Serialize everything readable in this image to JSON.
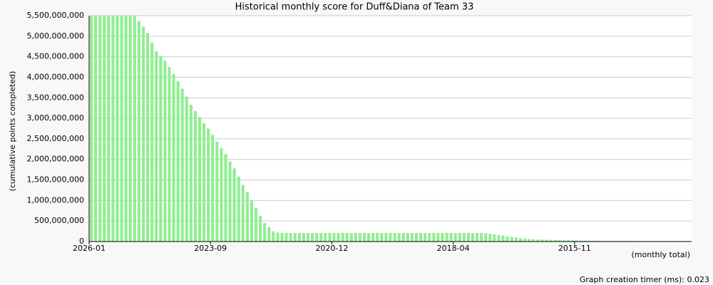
{
  "chart_data": {
    "type": "bar",
    "title": "Historical monthly score for Duff&Diana of Team 33",
    "y_label": "(cumulative points completed)",
    "x_label": "(monthly total)",
    "color": "#90ee90",
    "grid": true,
    "ylim": [
      0,
      5500000000
    ],
    "yticks": [
      0,
      {
        "value": 500000000,
        "label": "500,000,000"
      },
      {
        "value": 1000000000,
        "label": "1,000,000,000"
      },
      {
        "value": 1500000000,
        "label": "1,500,000,000"
      },
      {
        "value": 2000000000,
        "label": "2,000,000,000"
      },
      {
        "value": 2500000000,
        "label": "2,500,000,000"
      },
      {
        "value": 3000000000,
        "label": "3,000,000,000"
      },
      {
        "value": 3500000000,
        "label": "3,500,000,000"
      },
      {
        "value": 4000000000,
        "label": "4,000,000,000"
      },
      {
        "value": 4500000000,
        "label": "4,500,000,000"
      },
      {
        "value": 5000000000,
        "label": "5,000,000,000"
      },
      {
        "value": 5500000000,
        "label": "5,500,000,000"
      }
    ],
    "categories": [
      "2026-01",
      null,
      null,
      null,
      null,
      null,
      null,
      null,
      null,
      null,
      null,
      null,
      null,
      null,
      null,
      null,
      null,
      null,
      null,
      null,
      null,
      null,
      null,
      null,
      null,
      null,
      null,
      null,
      "2023-09",
      null,
      null,
      null,
      null,
      null,
      null,
      null,
      null,
      null,
      null,
      null,
      null,
      null,
      null,
      null,
      null,
      null,
      null,
      null,
      null,
      null,
      null,
      null,
      null,
      null,
      null,
      null,
      "2020-12",
      null,
      null,
      null,
      null,
      null,
      null,
      null,
      null,
      null,
      null,
      null,
      null,
      null,
      null,
      null,
      null,
      null,
      null,
      null,
      null,
      null,
      null,
      null,
      null,
      null,
      null,
      null,
      "2018-04",
      null,
      null,
      null,
      null,
      null,
      null,
      null,
      null,
      null,
      null,
      null,
      null,
      null,
      null,
      null,
      null,
      null,
      null,
      null,
      null,
      null,
      null,
      null,
      null,
      null,
      null,
      null,
      "2015-11",
      null,
      null,
      null,
      null,
      null,
      null,
      null,
      null,
      null,
      null,
      null,
      null,
      null,
      null,
      null,
      null,
      null,
      null,
      null,
      null,
      null,
      null,
      null,
      null,
      null,
      null
    ],
    "values": [
      5500000000,
      5500000000,
      5500000000,
      5500000000,
      5500000000,
      5500000000,
      5500000000,
      5500000000,
      5500000000,
      5500000000,
      5500000000,
      5370000000,
      5230000000,
      5080000000,
      4850000000,
      4630000000,
      4520000000,
      4400000000,
      4250000000,
      4080000000,
      3900000000,
      3720000000,
      3530000000,
      3330000000,
      3180000000,
      3030000000,
      2880000000,
      2750000000,
      2600000000,
      2430000000,
      2280000000,
      2130000000,
      1950000000,
      1780000000,
      1580000000,
      1380000000,
      1200000000,
      1000000000,
      820000000,
      620000000,
      450000000,
      350000000,
      250000000,
      220000000,
      210000000,
      210000000,
      210000000,
      210000000,
      210000000,
      210000000,
      210000000,
      210000000,
      210000000,
      210000000,
      210000000,
      210000000,
      210000000,
      210000000,
      210000000,
      210000000,
      210000000,
      210000000,
      210000000,
      210000000,
      210000000,
      210000000,
      210000000,
      210000000,
      210000000,
      210000000,
      210000000,
      210000000,
      210000000,
      210000000,
      210000000,
      210000000,
      210000000,
      210000000,
      210000000,
      210000000,
      210000000,
      210000000,
      210000000,
      210000000,
      210000000,
      210000000,
      210000000,
      210000000,
      210000000,
      210000000,
      210000000,
      200000000,
      190000000,
      175000000,
      160000000,
      145000000,
      130000000,
      115000000,
      100000000,
      85000000,
      75000000,
      65000000,
      58000000,
      52000000,
      47000000,
      43000000,
      40000000,
      37000000,
      35000000,
      33000000,
      31000000,
      29000000,
      27000000,
      25000000,
      23000000,
      21000000,
      20000000,
      19000000,
      18000000,
      17000000,
      16000000,
      15000000,
      14000000,
      13000000,
      12000000,
      11000000,
      10000000,
      9000000,
      8000000,
      7000000,
      6000000,
      5000000,
      5000000,
      4000000,
      4000000,
      3000000,
      3000000,
      2000000,
      2000000
    ]
  },
  "footer": "Graph creation timer (ms): 0.023"
}
